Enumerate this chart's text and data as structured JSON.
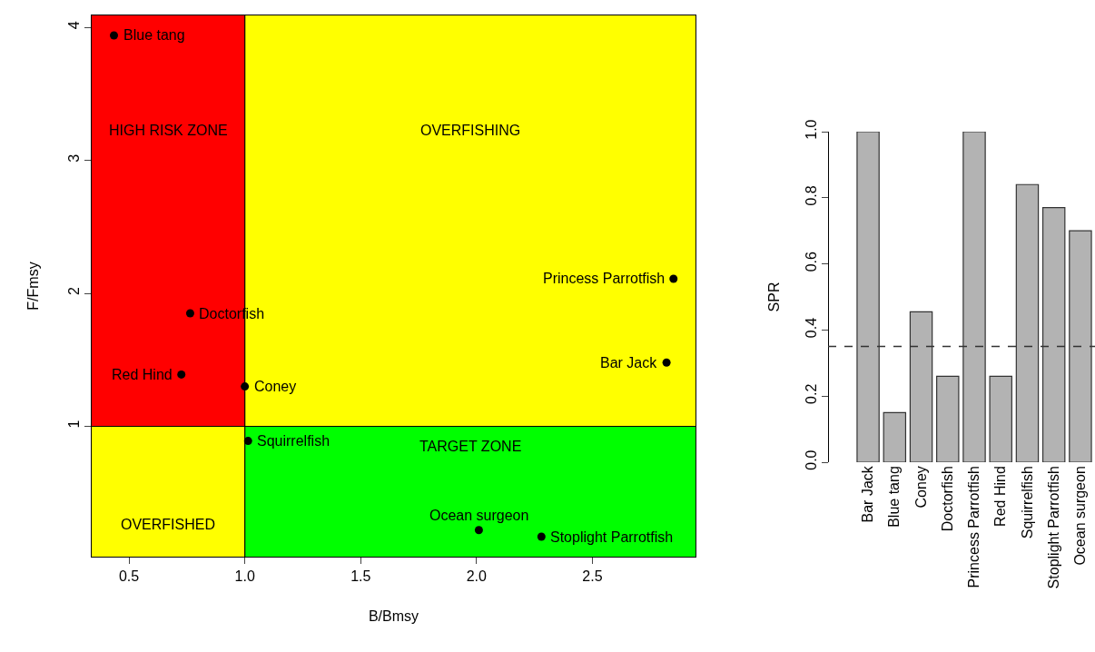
{
  "chart_data": [
    {
      "type": "scatter",
      "xlabel": "B/Bmsy",
      "ylabel": "F/Fmsy",
      "x": [
        0.435,
        0.764,
        0.726,
        1.0,
        1.014,
        2.01,
        2.28,
        2.85,
        2.82
      ],
      "values": [
        3.94,
        1.85,
        1.39,
        1.3,
        0.89,
        0.22,
        0.17,
        2.11,
        1.48
      ],
      "color": "#000000",
      "marker": "circle",
      "annotations": [
        "HIGH RISK ZONE",
        "OVERFISHING",
        "OVERFISHED",
        "TARGET ZONE",
        {
          "text": "Blue tang",
          "x": 0.435,
          "y": 3.94
        },
        {
          "text": "Doctorfish",
          "x": 0.764,
          "y": 1.85
        },
        {
          "text": "Red Hind",
          "x": 0.726,
          "y": 1.39
        },
        {
          "text": "Coney",
          "x": 1.0,
          "y": 1.3
        },
        {
          "text": "Squirrelfish",
          "x": 1.014,
          "y": 0.89
        },
        {
          "text": "Ocean surgeon",
          "x": 2.01,
          "y": 0.22
        },
        {
          "text": "Stoplight Parrotfish",
          "x": 2.28,
          "y": 0.17
        },
        {
          "text": "Princess Parrotfish",
          "x": 2.85,
          "y": 2.11
        },
        {
          "text": "Bar Jack",
          "x": 2.82,
          "y": 1.48
        }
      ],
      "ref_lines": [
        {
          "axis": "x",
          "value": 1,
          "color": "#000000",
          "line_style": "solid"
        },
        {
          "axis": "y",
          "value": 1,
          "color": "#000000",
          "line_style": "solid"
        }
      ],
      "xlim": [
        0.339,
        2.945
      ],
      "xticks": [
        {
          "value": 0.5,
          "label": "0.5"
        },
        {
          "value": 1,
          "label": "1.0"
        },
        {
          "value": 1.5,
          "label": "1.5"
        },
        {
          "value": 2,
          "label": "2.0"
        },
        {
          "value": 2.5,
          "label": "2.5"
        }
      ],
      "ylim": [
        0.02,
        4.09
      ],
      "yticks": [
        1,
        2,
        3,
        4
      ]
    },
    {
      "type": "bar",
      "ylabel": "SPR",
      "categories": [
        "Bar Jack",
        "Blue tang",
        "Coney",
        "Doctorfish",
        "Princess Parrotfish",
        "Red Hind",
        "Squirrelfish",
        "Stoplight Parrotfish",
        "Ocean surgeon"
      ],
      "values": [
        1.0,
        0.15,
        0.455,
        0.26,
        1.0,
        0.26,
        0.84,
        0.77,
        0.7
      ],
      "color": "#b3b3b3",
      "ylim": [
        0,
        1
      ],
      "yticks": [
        {
          "value": 0,
          "label": "0.0"
        },
        {
          "value": 0.2,
          "label": "0.2"
        },
        {
          "value": 0.4,
          "label": "0.4"
        },
        {
          "value": 0.6,
          "label": "0.6"
        },
        {
          "value": 0.8,
          "label": "0.8"
        },
        {
          "value": 1,
          "label": "1.0"
        }
      ],
      "ref_lines": [
        {
          "axis": "y",
          "value": 0.35,
          "line_style": "dashed",
          "color": "#333333"
        }
      ]
    }
  ]
}
